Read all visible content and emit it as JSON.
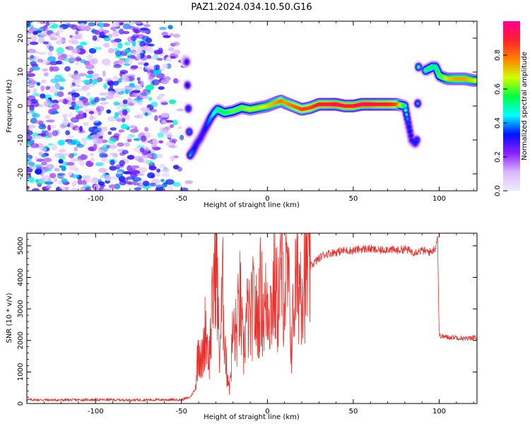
{
  "title": "PAZ1.2024.034.10.50.G16",
  "chart_data": [
    {
      "type": "heatmap",
      "title": "PAZ1.2024.034.10.50.G16",
      "xlabel": "Height of straight line (km)",
      "ylabel": "Frequency (Hz)",
      "xlim": [
        -140,
        122
      ],
      "ylim": [
        -25,
        25
      ],
      "x_ticks": [
        -100,
        -50,
        0,
        50,
        100
      ],
      "y_ticks": [
        -20,
        -10,
        0,
        10,
        20
      ],
      "colorbar": {
        "label": "Normalized spectral amplitude",
        "range": [
          0,
          1
        ],
        "ticks": [
          "0.0",
          "0.2",
          "0.4",
          "0.6",
          "0.8"
        ],
        "colormap": [
          "#f2eaff",
          "#d8b8ff",
          "#8a20ff",
          "#0010ff",
          "#00ffff",
          "#00ff40",
          "#d0ff00",
          "#ff8000",
          "#ff2030",
          "#ff0090"
        ]
      },
      "noise_region": {
        "x_range": [
          -140,
          -45
        ],
        "y_range": [
          -25,
          25
        ],
        "amplitude": 0.25
      },
      "ridge": {
        "x": [
          -48,
          -47,
          -45,
          -43,
          -41,
          -39,
          -37,
          -35,
          -33,
          -31,
          -29,
          -27,
          -25,
          -20,
          -15,
          -10,
          -5,
          0,
          5,
          8,
          10,
          15,
          20,
          25,
          30,
          35,
          40,
          45,
          50,
          55,
          60,
          65,
          70,
          75,
          80,
          82,
          84,
          86,
          87,
          88,
          92,
          96,
          98,
          100,
          102,
          105,
          110,
          115,
          120,
          122
        ],
        "y": [
          13.5,
          13.0,
          -14.5,
          -13.0,
          -11.0,
          -9.5,
          -7.5,
          -5.5,
          -3.5,
          -2.0,
          -1.0,
          -1.5,
          -2.0,
          -1.5,
          -0.5,
          -1.0,
          -0.5,
          0.0,
          1.0,
          1.5,
          1.0,
          0.0,
          -1.0,
          -0.5,
          0.5,
          0.5,
          0.5,
          0.0,
          0.0,
          0.5,
          0.5,
          0.5,
          0.5,
          0.5,
          0.0,
          -5.0,
          -10.0,
          -11.0,
          -10.0,
          11.5,
          10.5,
          11.5,
          11.5,
          9.0,
          8.5,
          8.0,
          8.0,
          8.0,
          7.5,
          7.5
        ],
        "amplitude": [
          0.15,
          0.3,
          0.4,
          0.35,
          0.3,
          0.3,
          0.3,
          0.35,
          0.4,
          0.45,
          0.5,
          0.55,
          0.55,
          0.6,
          0.6,
          0.65,
          0.65,
          0.7,
          0.75,
          0.8,
          0.75,
          0.8,
          0.85,
          0.85,
          0.9,
          0.9,
          0.95,
          0.9,
          0.9,
          0.95,
          0.95,
          0.9,
          0.9,
          0.85,
          0.5,
          0.35,
          0.3,
          0.3,
          0.35,
          0.45,
          0.5,
          0.55,
          0.5,
          0.6,
          0.6,
          0.7,
          0.75,
          0.75,
          0.7,
          0.65
        ]
      }
    },
    {
      "type": "line",
      "xlabel": "Height of straight line (km)",
      "ylabel": "SNR (10 * v/v)",
      "xlim": [
        -140,
        122
      ],
      "ylim": [
        0,
        5400
      ],
      "x_ticks": [
        -100,
        -50,
        0,
        50,
        100
      ],
      "y_ticks": [
        0,
        1000,
        2000,
        3000,
        4000,
        5000
      ],
      "color": "#e8302c",
      "series": [
        {
          "x": [
            -140,
            -120,
            -100,
            -80,
            -60,
            -50,
            -45,
            -42,
            -40,
            -38,
            -36,
            -34,
            -32,
            -30,
            -28,
            -26,
            -24,
            -22,
            -20,
            -18,
            -16,
            -14,
            -12,
            -10,
            -8,
            -6,
            -4,
            -2,
            0,
            2,
            4,
            6,
            8,
            10,
            12,
            14,
            16,
            18,
            20,
            22,
            24,
            26,
            28,
            30,
            32,
            35,
            40,
            45,
            50,
            55,
            60,
            65,
            70,
            75,
            80,
            85,
            90,
            95,
            98,
            99,
            100,
            105,
            110,
            115,
            120,
            122
          ],
          "y": [
            120,
            110,
            120,
            110,
            120,
            120,
            200,
            450,
            1900,
            1200,
            2500,
            1400,
            3000,
            5400,
            1500,
            3600,
            1200,
            500,
            2300,
            2200,
            3300,
            1500,
            2800,
            2500,
            3200,
            2600,
            3500,
            2800,
            3400,
            3000,
            3700,
            3200,
            4100,
            3600,
            3900,
            1800,
            3700,
            3900,
            4100,
            4200,
            4300,
            4400,
            4500,
            4600,
            4700,
            4750,
            4800,
            4850,
            4850,
            4900,
            4900,
            4850,
            4900,
            4850,
            4900,
            4800,
            4850,
            4800,
            4950,
            5400,
            2150,
            2100,
            2100,
            2050,
            2100,
            2050
          ]
        }
      ]
    }
  ]
}
